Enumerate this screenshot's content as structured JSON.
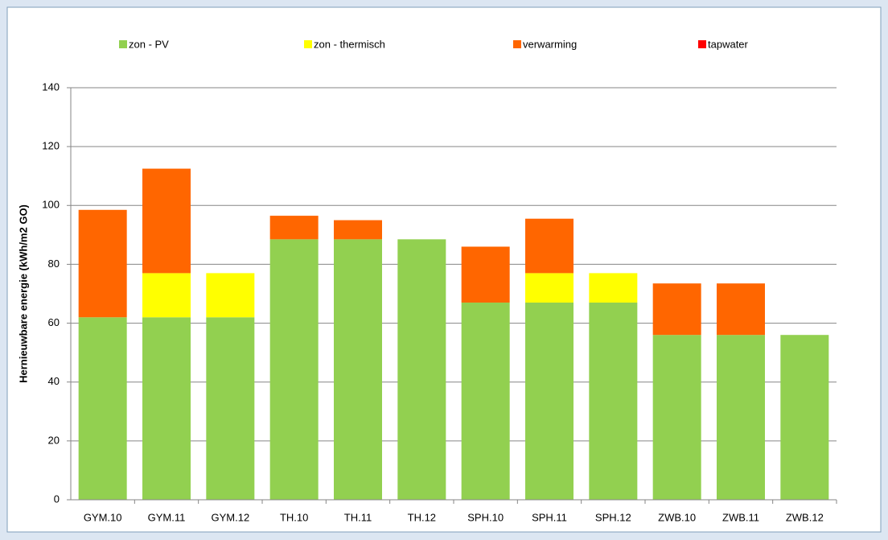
{
  "chart_data": {
    "type": "bar",
    "stacked": true,
    "ylabel": "Hernieuwbare energie (kWh/m2 GO)",
    "categories": [
      "GYM.10",
      "GYM.11",
      "GYM.12",
      "TH.10",
      "TH.11",
      "TH.12",
      "SPH.10",
      "SPH.11",
      "SPH.12",
      "ZWB.10",
      "ZWB.11",
      "ZWB.12"
    ],
    "series": [
      {
        "name": "zon - PV",
        "color": "#92d050",
        "values": [
          62,
          62,
          62,
          88.5,
          88.5,
          88.5,
          67,
          67,
          67,
          56,
          56,
          56
        ]
      },
      {
        "name": "zon - thermisch",
        "color": "#ffff00",
        "values": [
          0,
          15,
          15,
          0,
          0,
          0,
          0,
          10,
          10,
          0,
          0,
          0
        ]
      },
      {
        "name": "verwarming",
        "color": "#ff6600",
        "values": [
          36.5,
          35.5,
          0,
          8,
          6.5,
          0,
          19,
          18.5,
          0,
          17.5,
          17.5,
          0
        ]
      },
      {
        "name": "tapwater",
        "color": "#ff0000",
        "values": [
          0,
          0,
          0,
          0,
          0,
          0,
          0,
          0,
          0,
          0,
          0,
          0
        ]
      }
    ],
    "ylim": [
      0,
      140
    ],
    "yticks": [
      0,
      20,
      40,
      60,
      80,
      100,
      120,
      140
    ],
    "grid": true,
    "legend": "top"
  }
}
